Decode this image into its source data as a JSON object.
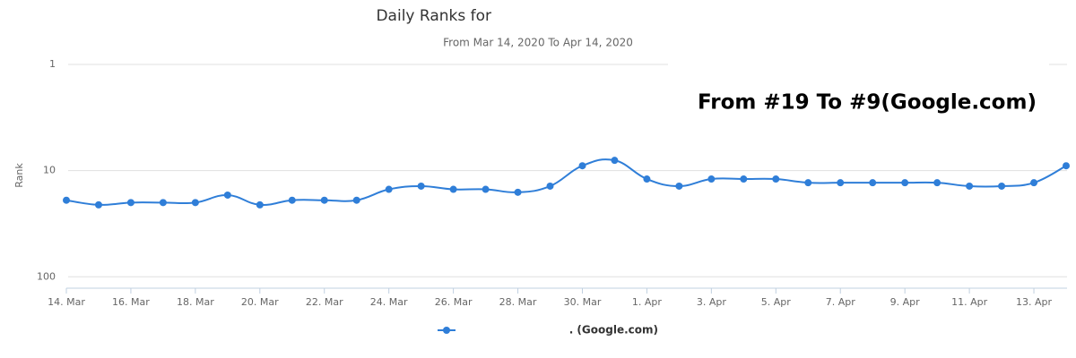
{
  "chart_data": {
    "type": "line",
    "title": "Daily Ranks for",
    "subtitle": "From Mar 14, 2020 To Apr 14, 2020",
    "y_label": "Rank",
    "annotation": "From #19 To #9(Google.com)",
    "categories": [
      "14. Mar",
      null,
      "16. Mar",
      null,
      "18. Mar",
      null,
      "20. Mar",
      null,
      "22. Mar",
      null,
      "24. Mar",
      null,
      "26. Mar",
      null,
      "28. Mar",
      null,
      "30. Mar",
      null,
      "1. Apr",
      null,
      "3. Apr",
      null,
      "5. Apr",
      null,
      "7. Apr",
      null,
      "9. Apr",
      null,
      "11. Apr",
      null,
      "13. Apr",
      null
    ],
    "series": [
      {
        "name": ". (Google.com)",
        "color": "#2f7ed8",
        "values": [
          19,
          21,
          20,
          20,
          20,
          17,
          21,
          19,
          19,
          19,
          15,
          14,
          15,
          15,
          16,
          14,
          9,
          8,
          12,
          14,
          12,
          12,
          12,
          13,
          13,
          13,
          13,
          13,
          14,
          14,
          13,
          9
        ]
      }
    ],
    "ylim": [
      1,
      128
    ],
    "yticks": [
      1,
      10,
      100
    ],
    "log_y": true,
    "reversed_y": true,
    "grid": true
  }
}
